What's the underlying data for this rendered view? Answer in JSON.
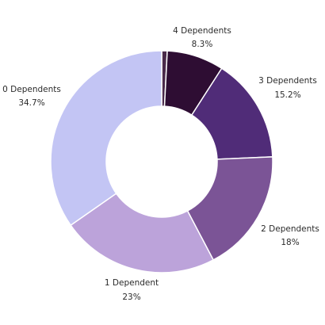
{
  "chart_data": {
    "type": "pie",
    "donut": true,
    "start_angle_deg": -90,
    "direction": "clockwise",
    "slices": [
      {
        "name": "Unlabeled",
        "value": 0.8,
        "label": "",
        "pct_label": "",
        "color": "#4a2a4a"
      },
      {
        "name": "4 Dependents",
        "value": 8.3,
        "label": "4 Dependents",
        "pct_label": "8.3%",
        "color": "#2e0d33"
      },
      {
        "name": "3 Dependents",
        "value": 15.2,
        "label": "3 Dependents",
        "pct_label": "15.2%",
        "color": "#502c78"
      },
      {
        "name": "2 Dependents",
        "value": 18,
        "label": "2 Dependents",
        "pct_label": "18%",
        "color": "#7b5496"
      },
      {
        "name": "1 Dependent",
        "value": 23,
        "label": "1 Dependent",
        "pct_label": "23%",
        "color": "#bca3da"
      },
      {
        "name": "0 Dependents",
        "value": 34.7,
        "label": "0 Dependents",
        "pct_label": "34.7%",
        "color": "#c3c5f4"
      }
    ]
  }
}
